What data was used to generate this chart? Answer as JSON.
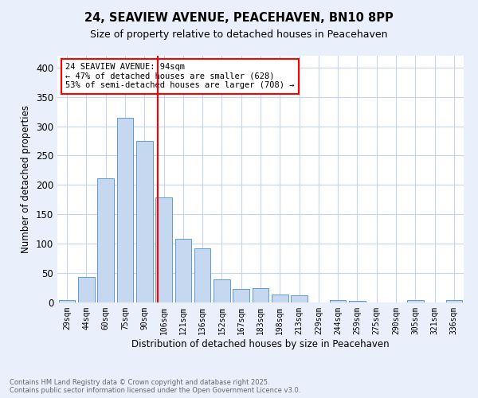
{
  "title": "24, SEAVIEW AVENUE, PEACEHAVEN, BN10 8PP",
  "subtitle": "Size of property relative to detached houses in Peacehaven",
  "xlabel": "Distribution of detached houses by size in Peacehaven",
  "ylabel": "Number of detached properties",
  "categories": [
    "29sqm",
    "44sqm",
    "60sqm",
    "75sqm",
    "90sqm",
    "106sqm",
    "121sqm",
    "136sqm",
    "152sqm",
    "167sqm",
    "183sqm",
    "198sqm",
    "213sqm",
    "229sqm",
    "244sqm",
    "259sqm",
    "275sqm",
    "290sqm",
    "305sqm",
    "321sqm",
    "336sqm"
  ],
  "values": [
    4,
    44,
    211,
    315,
    275,
    179,
    108,
    92,
    39,
    23,
    25,
    14,
    12,
    0,
    4,
    3,
    0,
    0,
    4,
    0,
    4
  ],
  "bar_color": "#c5d8f0",
  "bar_edge_color": "#5b9bd5",
  "vline_x": 4.67,
  "vline_color": "red",
  "annotation_text": "24 SEAVIEW AVENUE: 94sqm\n← 47% of detached houses are smaller (628)\n53% of semi-detached houses are larger (708) →",
  "annotation_box_color": "white",
  "annotation_box_edge_color": "red",
  "ylim": [
    0,
    420
  ],
  "yticks": [
    0,
    50,
    100,
    150,
    200,
    250,
    300,
    350,
    400
  ],
  "footer_text": "Contains HM Land Registry data © Crown copyright and database right 2025.\nContains public sector information licensed under the Open Government Licence v3.0.",
  "bg_color": "#eaf0fb",
  "plot_bg_color": "white",
  "grid_color": "#c8d4ec"
}
